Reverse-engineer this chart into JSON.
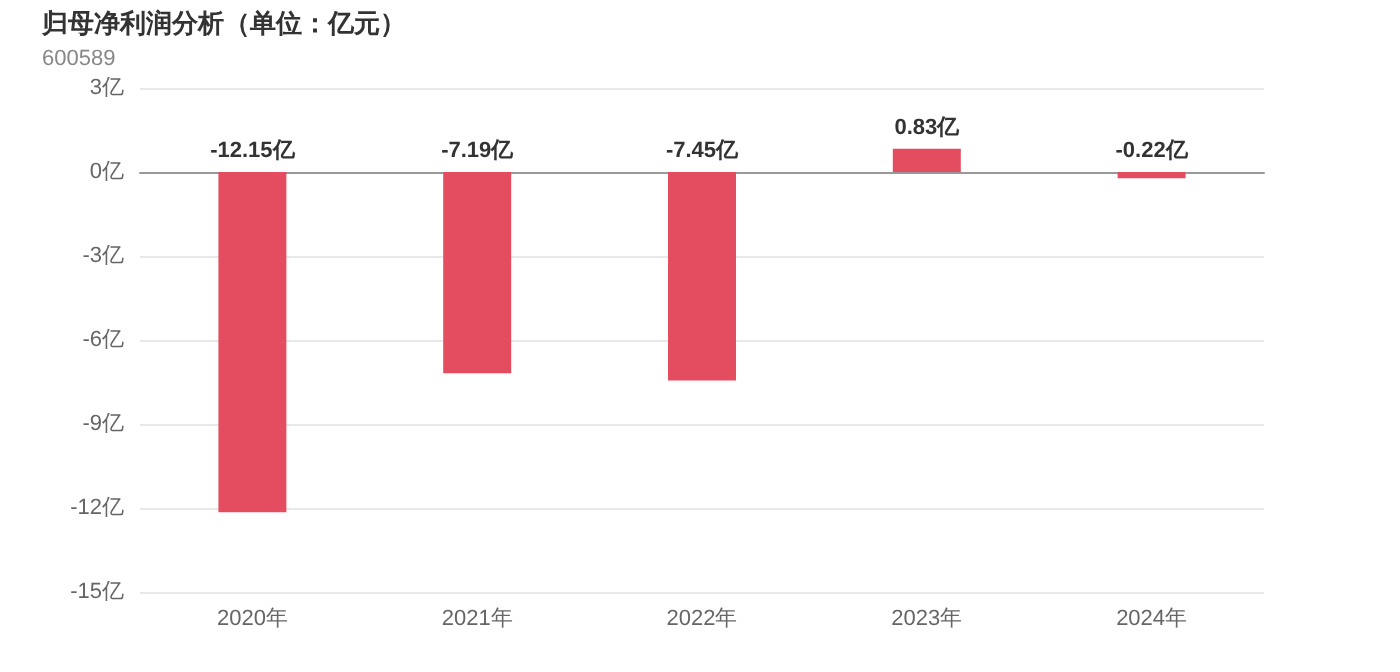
{
  "chart_data": {
    "type": "bar",
    "title": "归母净利润分析（单位：亿元）",
    "subtitle": "600589",
    "categories": [
      "2020年",
      "2021年",
      "2022年",
      "2023年",
      "2024年"
    ],
    "values": [
      -12.15,
      -7.19,
      -7.45,
      0.83,
      -0.22
    ],
    "value_labels": [
      "-12.15亿",
      "-7.19亿",
      "-7.45亿",
      "0.83亿",
      "-0.22亿"
    ],
    "color": "#e34d5f",
    "ylim": [
      -15,
      3
    ],
    "yticks": [
      {
        "value": -15,
        "label": "-15亿"
      },
      {
        "value": -12,
        "label": "-12亿"
      },
      {
        "value": -9,
        "label": "-9亿"
      },
      {
        "value": -6,
        "label": "-6亿"
      },
      {
        "value": -3,
        "label": "-3亿"
      },
      {
        "value": 0,
        "label": "0亿"
      },
      {
        "value": 3,
        "label": "3亿"
      }
    ],
    "grid": "y"
  }
}
